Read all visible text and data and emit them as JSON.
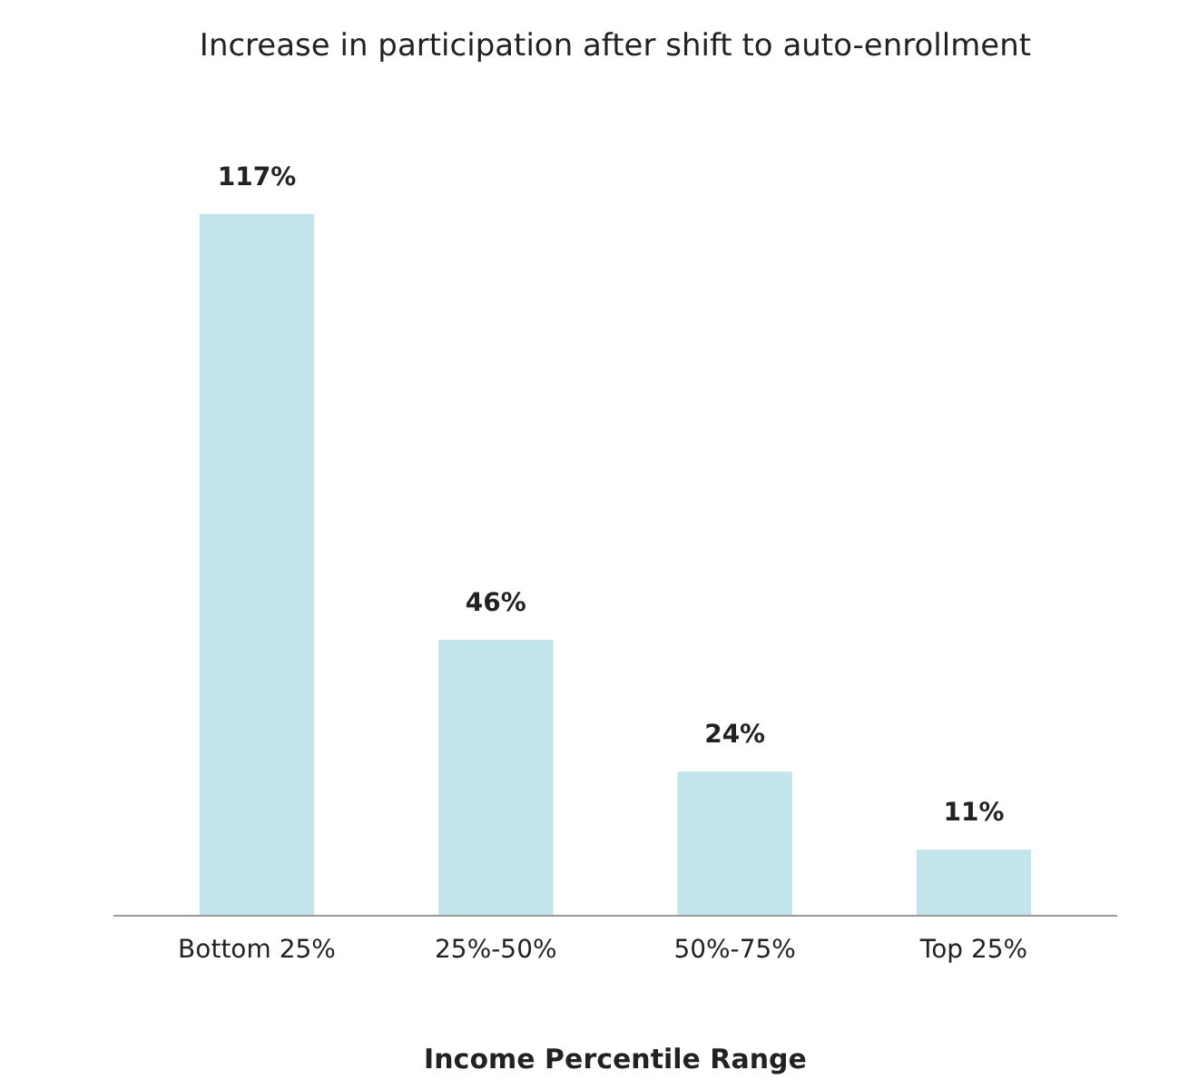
{
  "chart_data": {
    "type": "bar",
    "title": "Increase in participation after shift to auto-enrollment",
    "xlabel": "Income Percentile Range",
    "categories": [
      "Bottom 25%",
      "25%-50%",
      "50%-75%",
      "Top 25%"
    ],
    "values": [
      117,
      46,
      24,
      11
    ],
    "value_labels": [
      "117%",
      "46%",
      "24%",
      "11%"
    ],
    "color": "#c1e5ea",
    "grid": false
  }
}
